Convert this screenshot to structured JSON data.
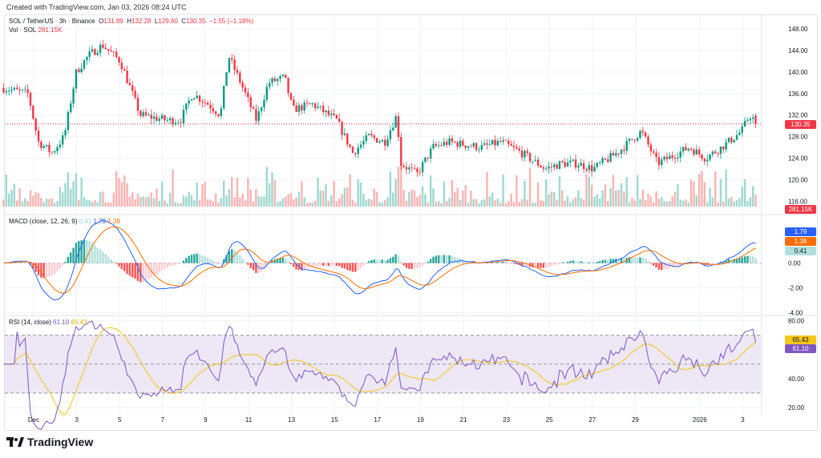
{
  "credit": "Created with TradingView.com, Jan 03, 2026 08:24 UTC",
  "legend": {
    "symbol": "SOL / TetherUS · 3h · Binance",
    "o_label": "O",
    "o": "131.89",
    "h_label": "H",
    "h": "132.28",
    "l_label": "L",
    "l": "129.60",
    "c_label": "C",
    "c": "130.35",
    "change": "−1.55 (−1.18%)",
    "vol_label": "Vol · SOL",
    "vol": "281.15K",
    "macd_label": "MACD (close, 12, 26, 9)",
    "macd_hist": "0.41",
    "macd": "1.79",
    "macd_signal": "1.38",
    "rsi_label": "RSI (14, close)",
    "rsi": "61.10",
    "rsi_ma": "65.43"
  },
  "tags": {
    "price": "130.35",
    "volume": "281.15K",
    "macd": "1.79",
    "signal": "1.38",
    "hist": "0.41",
    "rsi_ma": "65.43",
    "rsi": "61.10"
  },
  "colors": {
    "up": "#089981",
    "down": "#f23645",
    "vol_up": "#9fd8cf",
    "vol_down": "#f8b4b2",
    "macd": "#2962ff",
    "signal": "#ff6d00",
    "rsi": "#7e57c2",
    "rsi_ma": "#f5c518",
    "rsi_band": "#ede7f6"
  },
  "logo": "TradingView",
  "chart_data": {
    "type": "candlestick",
    "title": "SOL / TetherUS · 3h · Binance",
    "interval": "3h",
    "price_axis": {
      "ticks": [
        "148.00",
        "144.00",
        "140.00",
        "136.00",
        "132.00",
        "128.00",
        "124.00",
        "120.00",
        "116.00"
      ],
      "range": [
        115,
        149.5
      ]
    },
    "macd_axis": {
      "ticks": [
        "0.00",
        "-2.00",
        "-4.00"
      ],
      "range": [
        -4.1,
        3
      ]
    },
    "rsi_axis": {
      "ticks": [
        "80.00",
        "40.00",
        "20.00"
      ],
      "range": [
        15,
        82
      ],
      "bands": [
        70,
        50,
        30
      ]
    },
    "x_ticks": [
      {
        "label": "Dec",
        "day": 0
      },
      {
        "label": "3",
        "day": 2
      },
      {
        "label": "5",
        "day": 4
      },
      {
        "label": "7",
        "day": 6
      },
      {
        "label": "9",
        "day": 8
      },
      {
        "label": "11",
        "day": 10
      },
      {
        "label": "13",
        "day": 12
      },
      {
        "label": "15",
        "day": 14
      },
      {
        "label": "17",
        "day": 16
      },
      {
        "label": "19",
        "day": 18
      },
      {
        "label": "21",
        "day": 20
      },
      {
        "label": "23",
        "day": 22
      },
      {
        "label": "25",
        "day": 24
      },
      {
        "label": "27",
        "day": 26
      },
      {
        "label": "29",
        "day": 28
      },
      {
        "label": "2026",
        "day": 31
      },
      {
        "label": "3",
        "day": 33
      }
    ],
    "price_path_days_since_dec1": [
      [
        -1.4,
        137
      ],
      [
        -0.26,
        136
      ],
      [
        0.22,
        127
      ],
      [
        0.86,
        125
      ],
      [
        1.42,
        128
      ],
      [
        1.98,
        140
      ],
      [
        2.54,
        143
      ],
      [
        3.2,
        145
      ],
      [
        4.03,
        142
      ],
      [
        4.96,
        132
      ],
      [
        6.27,
        131
      ],
      [
        6.83,
        131
      ],
      [
        7.39,
        136
      ],
      [
        8.13,
        134
      ],
      [
        8.69,
        132
      ],
      [
        9.07,
        143
      ],
      [
        9.63,
        138
      ],
      [
        10.37,
        131
      ],
      [
        10.93,
        138
      ],
      [
        11.68,
        139
      ],
      [
        12.05,
        133
      ],
      [
        12.99,
        134
      ],
      [
        14.1,
        131
      ],
      [
        14.85,
        125
      ],
      [
        15.6,
        128
      ],
      [
        16.34,
        127
      ],
      [
        16.9,
        132
      ],
      [
        17.09,
        123
      ],
      [
        17.84,
        121
      ],
      [
        18.58,
        126
      ],
      [
        19.33,
        127
      ],
      [
        20.82,
        126
      ],
      [
        21.75,
        127
      ],
      [
        22.69,
        125
      ],
      [
        23.81,
        122
      ],
      [
        24.55,
        123
      ],
      [
        25.3,
        123
      ],
      [
        26.04,
        122
      ],
      [
        27.16,
        125
      ],
      [
        28.28,
        129
      ],
      [
        29.03,
        123
      ],
      [
        30.52,
        126
      ],
      [
        31.27,
        124
      ],
      [
        32.01,
        126
      ],
      [
        32.95,
        129
      ],
      [
        33.32,
        132
      ],
      [
        33.69,
        130.35
      ]
    ],
    "last": {
      "open": 131.89,
      "high": 132.28,
      "low": 129.6,
      "close": 130.35,
      "volume_k": 281.15,
      "macd": 1.79,
      "signal": 1.38,
      "hist": 0.41,
      "rsi": 61.1,
      "rsi_ma": 65.43
    }
  }
}
